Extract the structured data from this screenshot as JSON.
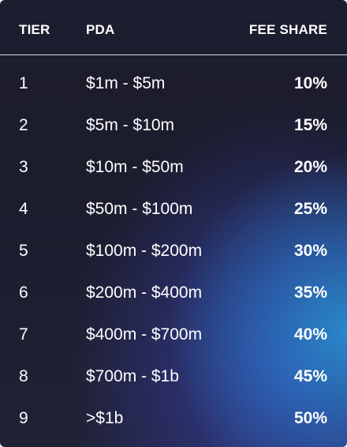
{
  "table": {
    "headers": {
      "tier": "TIER",
      "pda": "PDA",
      "fee_share": "FEE SHARE"
    },
    "rows": [
      {
        "tier": "1",
        "pda": "$1m - $5m",
        "fee_share": "10%"
      },
      {
        "tier": "2",
        "pda": "$5m - $10m",
        "fee_share": "15%"
      },
      {
        "tier": "3",
        "pda": "$10m - $50m",
        "fee_share": "20%"
      },
      {
        "tier": "4",
        "pda": "$50m - $100m",
        "fee_share": "25%"
      },
      {
        "tier": "5",
        "pda": "$100m - $200m",
        "fee_share": "30%"
      },
      {
        "tier": "6",
        "pda": "$200m - $400m",
        "fee_share": "35%"
      },
      {
        "tier": "7",
        "pda": "$400m - $700m",
        "fee_share": "40%"
      },
      {
        "tier": "8",
        "pda": "$700m - $1b",
        "fee_share": "45%"
      },
      {
        "tier": "9",
        "pda": ">$1b",
        "fee_share": "50%"
      }
    ]
  },
  "colors": {
    "background_dark": "#1c1d2e",
    "accent_blue": "#2a8ccd",
    "accent_indigo": "#3746aa",
    "text": "#ffffff"
  }
}
